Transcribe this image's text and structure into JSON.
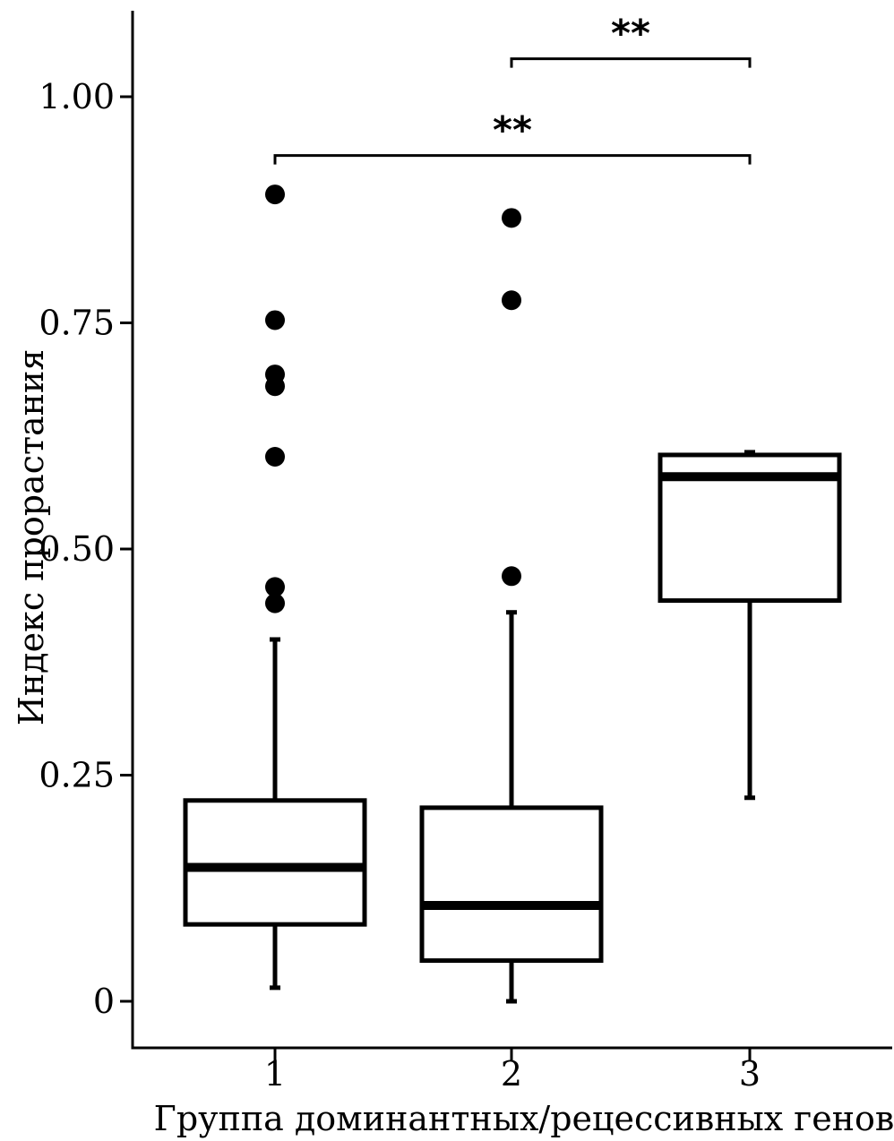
{
  "chart_data": {
    "type": "boxplot",
    "xlabel": "Группа доминантных/рецессивных генов",
    "ylabel": "Индекс прорастания",
    "ylim": [
      -0.05,
      1.09
    ],
    "yticks": [
      {
        "value": 0,
        "label": "0"
      },
      {
        "value": 0.25,
        "label": "0.25"
      },
      {
        "value": 0.5,
        "label": "0.50"
      },
      {
        "value": 0.75,
        "label": "0.75"
      },
      {
        "value": 1.0,
        "label": "1.00"
      }
    ],
    "categories": [
      "1",
      "2",
      "3"
    ],
    "boxes": [
      {
        "group": "1",
        "whisker_low": 0.015,
        "q1": 0.085,
        "median": 0.148,
        "q3": 0.222,
        "whisker_high": 0.4,
        "outliers": [
          0.44,
          0.458,
          0.602,
          0.68,
          0.693,
          0.753,
          0.892
        ]
      },
      {
        "group": "2",
        "whisker_low": 0.0,
        "q1": 0.045,
        "median": 0.106,
        "q3": 0.214,
        "whisker_high": 0.43,
        "outliers": [
          0.47,
          0.775,
          0.866
        ]
      },
      {
        "group": "3",
        "whisker_low": 0.225,
        "q1": 0.443,
        "median": 0.58,
        "q3": 0.604,
        "whisker_high": 0.607,
        "outliers": []
      }
    ],
    "significance": [
      {
        "from": "1",
        "to": "3",
        "y": 0.935,
        "label": "**"
      },
      {
        "from": "2",
        "to": "3",
        "y": 1.042,
        "label": "**"
      }
    ]
  }
}
